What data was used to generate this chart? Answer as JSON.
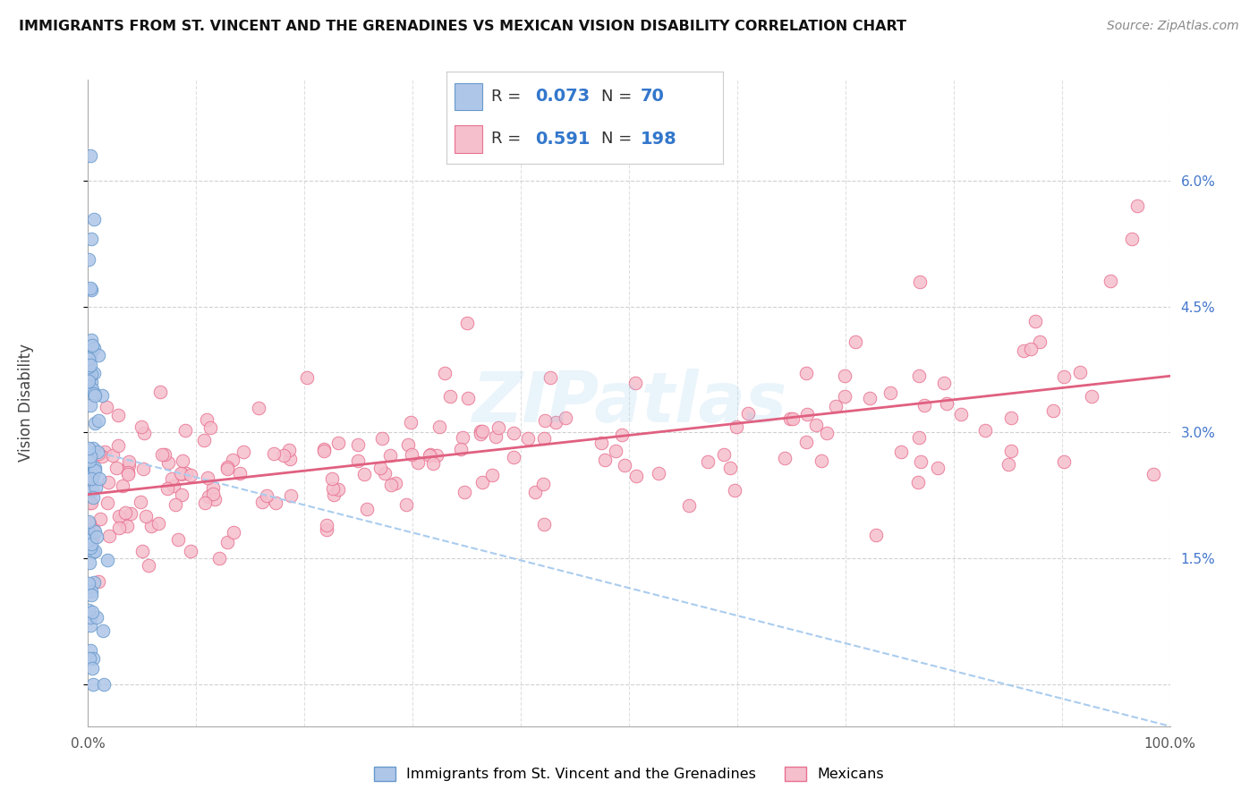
{
  "title": "IMMIGRANTS FROM ST. VINCENT AND THE GRENADINES VS MEXICAN VISION DISABILITY CORRELATION CHART",
  "source": "Source: ZipAtlas.com",
  "ylabel": "Vision Disability",
  "xlim": [
    0,
    1.0
  ],
  "ylim": [
    -0.005,
    0.072
  ],
  "yticks": [
    0.0,
    0.015,
    0.03,
    0.045,
    0.06
  ],
  "ytick_labels": [
    "",
    "1.5%",
    "3.0%",
    "4.5%",
    "6.0%"
  ],
  "xticks": [
    0.0,
    0.1,
    0.2,
    0.3,
    0.4,
    0.5,
    0.6,
    0.7,
    0.8,
    0.9,
    1.0
  ],
  "xtick_labels": [
    "0.0%",
    "",
    "",
    "",
    "",
    "",
    "",
    "",
    "",
    "",
    "100.0%"
  ],
  "blue_R": 0.073,
  "blue_N": 70,
  "pink_R": 0.591,
  "pink_N": 198,
  "blue_color": "#aec6e8",
  "blue_edge": "#6699cc",
  "pink_color": "#f5bfcc",
  "pink_edge": "#e87090",
  "blue_trend_color": "#aaccee",
  "pink_trend_color": "#e06080",
  "legend_blue_label": "Immigrants from St. Vincent and the Grenadines",
  "legend_pink_label": "Mexicans",
  "watermark": "ZIPatlas",
  "background_color": "#ffffff",
  "grid_color": "#cccccc"
}
